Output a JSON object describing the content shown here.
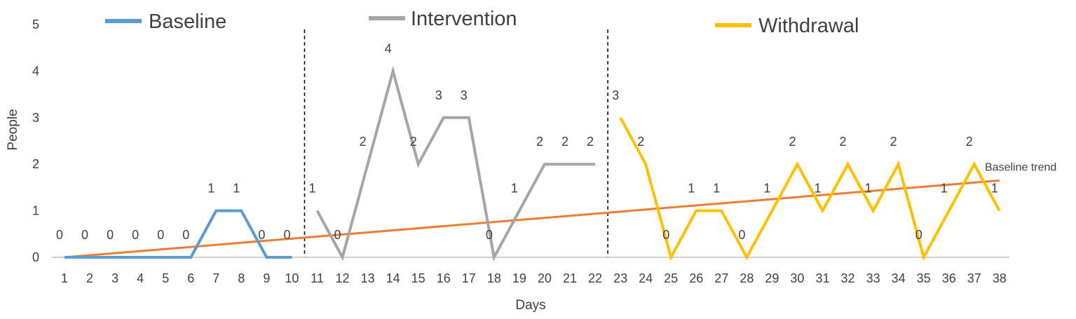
{
  "chart_data": {
    "type": "line",
    "xlabel": "Days",
    "ylabel": "People",
    "ylim": [
      0,
      5
    ],
    "yticks": [
      0,
      1,
      2,
      3,
      4,
      5
    ],
    "x": [
      1,
      2,
      3,
      4,
      5,
      6,
      7,
      8,
      9,
      10,
      11,
      12,
      13,
      14,
      15,
      16,
      17,
      18,
      19,
      20,
      21,
      22,
      23,
      24,
      25,
      26,
      27,
      28,
      29,
      30,
      31,
      32,
      33,
      34,
      35,
      36,
      37,
      38
    ],
    "grid": false,
    "legend_placement": "top",
    "phase_dividers": [
      10.5,
      22.5
    ],
    "series": [
      {
        "name": "Baseline",
        "color": "#5B9BD5",
        "x": [
          1,
          2,
          3,
          4,
          5,
          6,
          7,
          8,
          9,
          10
        ],
        "y": [
          0,
          0,
          0,
          0,
          0,
          0,
          1,
          1,
          0,
          0
        ]
      },
      {
        "name": "Intervention",
        "color": "#A5A5A5",
        "x": [
          11,
          12,
          13,
          14,
          15,
          16,
          17,
          18,
          19,
          20,
          21,
          22
        ],
        "y": [
          1,
          0,
          2,
          4,
          2,
          3,
          3,
          0,
          1,
          2,
          2,
          2
        ]
      },
      {
        "name": "Withdrawal",
        "color": "#FFC000",
        "x": [
          23,
          24,
          25,
          26,
          27,
          28,
          29,
          30,
          31,
          32,
          33,
          34,
          35,
          36,
          37,
          38
        ],
        "y": [
          3,
          2,
          0,
          1,
          1,
          0,
          1,
          2,
          1,
          2,
          1,
          2,
          0,
          1,
          2,
          1
        ]
      }
    ],
    "trend": {
      "name": "Baseline trend",
      "color": "#ED7D31",
      "start": [
        1,
        0
      ],
      "end": [
        38,
        1.65
      ]
    }
  }
}
